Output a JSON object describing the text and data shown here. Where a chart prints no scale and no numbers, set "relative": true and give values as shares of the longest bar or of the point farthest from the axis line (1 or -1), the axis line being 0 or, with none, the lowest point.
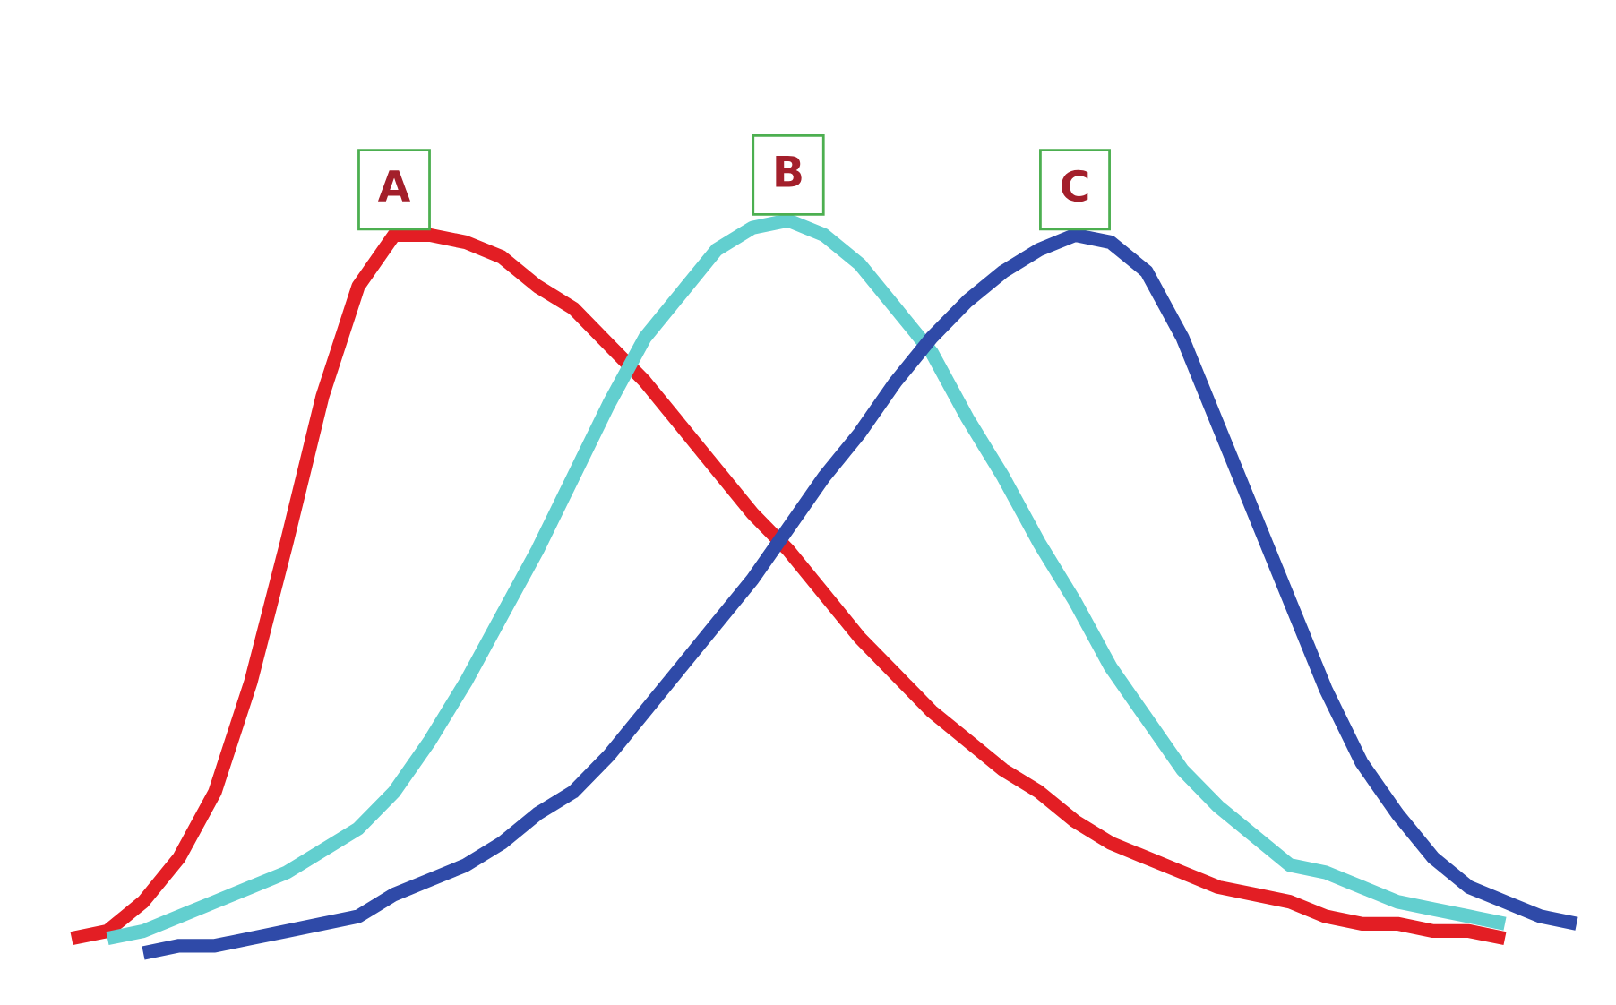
{
  "chart_data": {
    "type": "line",
    "relative": true,
    "categories": [
      null,
      null,
      null,
      null,
      null,
      null,
      null,
      null,
      null,
      null,
      null,
      null,
      null,
      null,
      null,
      null,
      null,
      null,
      null,
      null,
      null,
      null,
      null,
      null,
      null,
      null,
      null,
      null,
      null,
      null,
      null,
      null,
      null,
      null,
      null,
      null,
      null,
      null,
      null,
      null,
      null,
      null,
      null
    ],
    "series": [
      {
        "name": "A",
        "color": "#e31e24",
        "values": [
          0.02,
          0.03,
          0.07,
          0.13,
          0.22,
          0.37,
          0.56,
          0.76,
          0.91,
          0.98,
          0.98,
          0.97,
          0.95,
          0.91,
          0.88,
          0.83,
          0.78,
          0.72,
          0.66,
          0.6,
          0.55,
          0.49,
          0.43,
          0.38,
          0.33,
          0.29,
          0.25,
          0.22,
          0.18,
          0.15,
          0.13,
          0.11,
          0.09,
          0.08,
          0.07,
          0.05,
          0.04,
          0.04,
          0.03,
          0.03,
          0.02,
          null,
          null
        ]
      },
      {
        "name": "B",
        "color": "#62cfcf",
        "values": [
          null,
          0.02,
          0.03,
          0.05,
          0.07,
          0.09,
          0.11,
          0.14,
          0.17,
          0.22,
          0.29,
          0.37,
          0.46,
          0.55,
          0.65,
          0.75,
          0.84,
          0.9,
          0.96,
          0.99,
          1.0,
          0.98,
          0.94,
          0.88,
          0.82,
          0.73,
          0.65,
          0.56,
          0.48,
          0.39,
          0.32,
          0.25,
          0.2,
          0.16,
          0.12,
          0.11,
          0.09,
          0.07,
          0.06,
          0.05,
          0.04,
          null,
          null
        ]
      },
      {
        "name": "C",
        "color": "#2f4aa8",
        "values": [
          null,
          null,
          0.0,
          0.01,
          0.01,
          0.02,
          0.03,
          0.04,
          0.05,
          0.08,
          0.1,
          0.12,
          0.15,
          0.19,
          0.22,
          0.27,
          0.33,
          0.39,
          0.45,
          0.51,
          0.58,
          0.65,
          0.71,
          0.78,
          0.84,
          0.89,
          0.93,
          0.96,
          0.98,
          0.97,
          0.93,
          0.84,
          0.72,
          0.6,
          0.48,
          0.36,
          0.26,
          0.19,
          0.13,
          0.09,
          0.07,
          0.05,
          0.04
        ]
      }
    ]
  }
}
